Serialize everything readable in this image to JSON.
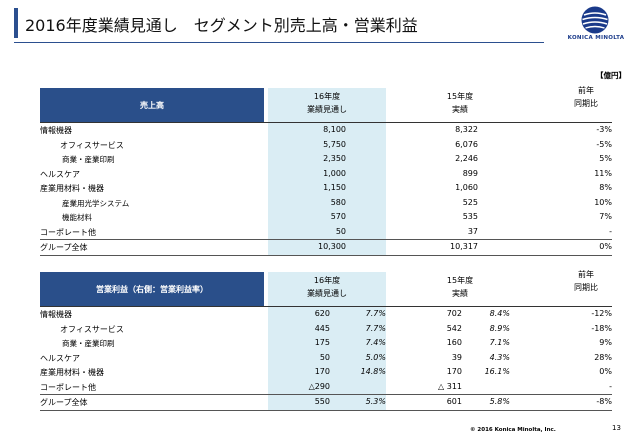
{
  "title": "2016年度業績見通し　セグメント別売上高・営業利益",
  "logo_text": "KONICA MINOLTA",
  "unit": "【億円】",
  "sales_table": {
    "header": "売上高",
    "col_forecast": [
      "16年度",
      "業績見通し"
    ],
    "col_actual": [
      "15年度",
      "実績"
    ],
    "col_yoy": [
      "前年",
      "同期比"
    ],
    "rows": [
      {
        "label": "情報機器",
        "f16": "8,100",
        "a15": "8,322",
        "yoy": "-3%"
      },
      {
        "label": "オフィスサービス",
        "f16": "5,750",
        "a15": "6,076",
        "yoy": "-5%"
      },
      {
        "label": "商業・産業印刷",
        "f16": "2,350",
        "a15": "2,246",
        "yoy": "5%"
      },
      {
        "label": "ヘルスケア",
        "f16": "1,000",
        "a15": "899",
        "yoy": "11%"
      },
      {
        "label": "産業用材料・機器",
        "f16": "1,150",
        "a15": "1,060",
        "yoy": "8%"
      },
      {
        "label": "産業用光学システム",
        "f16": "580",
        "a15": "525",
        "yoy": "10%"
      },
      {
        "label": "機能材料",
        "f16": "570",
        "a15": "535",
        "yoy": "7%"
      },
      {
        "label": "コーポレート他",
        "f16": "50",
        "a15": "37",
        "yoy": "-"
      },
      {
        "label": "グループ全体",
        "f16": "10,300",
        "a15": "10,317",
        "yoy": "0%"
      }
    ]
  },
  "profit_table": {
    "header": "営業利益（右側：営業利益率）",
    "col_forecast": [
      "16年度",
      "業績見通し"
    ],
    "col_actual": [
      "15年度",
      "実績"
    ],
    "col_yoy": [
      "前年",
      "同期比"
    ],
    "rows": [
      {
        "label": "情報機器",
        "f16": "620",
        "f16r": "7.7%",
        "a15": "702",
        "a15r": "8.4%",
        "yoy": "-12%"
      },
      {
        "label": "オフィスサービス",
        "f16": "445",
        "f16r": "7.7%",
        "a15": "542",
        "a15r": "8.9%",
        "yoy": "-18%"
      },
      {
        "label": "商業・産業印刷",
        "f16": "175",
        "f16r": "7.4%",
        "a15": "160",
        "a15r": "7.1%",
        "yoy": "9%"
      },
      {
        "label": "ヘルスケア",
        "f16": "50",
        "f16r": "5.0%",
        "a15": "39",
        "a15r": "4.3%",
        "yoy": "28%"
      },
      {
        "label": "産業用材料・機器",
        "f16": "170",
        "f16r": "14.8%",
        "a15": "170",
        "a15r": "16.1%",
        "yoy": "0%"
      },
      {
        "label": "コーポレート他",
        "f16": "△290",
        "f16r": "",
        "a15": "△ 311",
        "a15r": "",
        "yoy": "-"
      },
      {
        "label": "グループ全体",
        "f16": "550",
        "f16r": "5.3%",
        "a15": "601",
        "a15r": "5.8%",
        "yoy": "-8%"
      }
    ]
  },
  "footer": {
    "copyright": "© 2016 Konica Minolta, Inc.",
    "page": "13"
  },
  "colors": {
    "header_bg": "#2a4f8a",
    "band_bg": "#daedf4",
    "accent": "#2b4f8f"
  }
}
